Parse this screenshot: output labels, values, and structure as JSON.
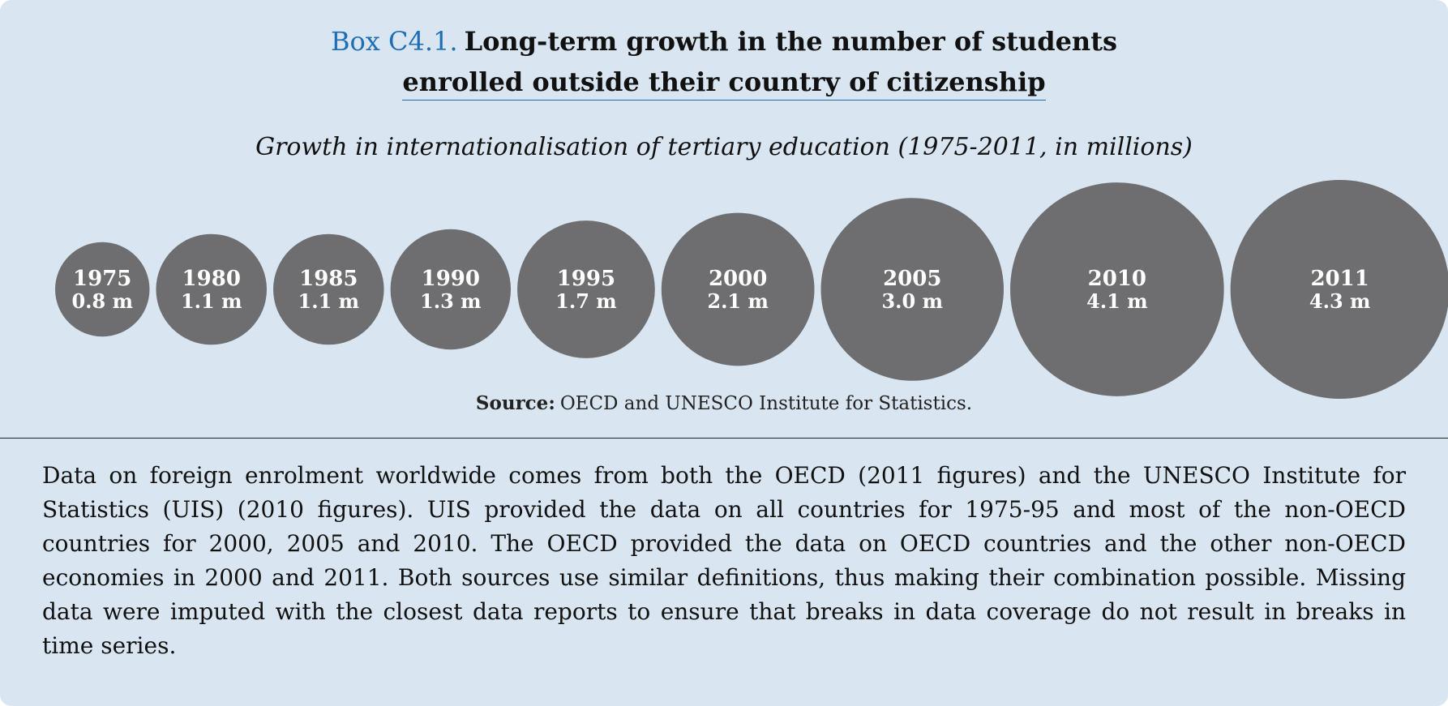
{
  "box": {
    "label": "Box C4.1.",
    "title_line1": "Long-term growth in the number of students",
    "title_line2": "enrolled outside their country of citizenship"
  },
  "chart_data": {
    "type": "bubble",
    "title": "Growth in internationalisation of tertiary education (1975-2011, in millions)",
    "categories": [
      "1975",
      "1980",
      "1985",
      "1990",
      "1995",
      "2000",
      "2005",
      "2010",
      "2011"
    ],
    "values": [
      0.8,
      1.1,
      1.1,
      1.3,
      1.7,
      2.1,
      3.0,
      4.1,
      4.3
    ],
    "value_labels": [
      "0.8 m",
      "1.1 m",
      "1.1 m",
      "1.3 m",
      "1.7 m",
      "2.1 m",
      "3.0 m",
      "4.1 m",
      "4.3 m"
    ],
    "unit": "m",
    "bubble_color": "#6e6e70"
  },
  "source": {
    "label": "Source:",
    "text": "OECD and UNESCO Institute for Statistics."
  },
  "body_text": "Data on foreign enrolment worldwide comes from both the OECD (2011 figures) and the UNESCO Institute for Statistics (UIS) (2010 figures). UIS provided the data on all countries for 1975-95 and most of the non-OECD countries for 2000, 2005 and 2010. The OECD provided the data on OECD countries and the other non-OECD economies in 2000 and 2011. Both sources use similar definitions, thus making their combination possible. Missing data were imputed with the closest data reports to ensure that breaks in data coverage do not result in breaks in time series.",
  "colors": {
    "background": "#d9e6f1",
    "accent": "#1f6db3",
    "bubble": "#6e6e70"
  }
}
